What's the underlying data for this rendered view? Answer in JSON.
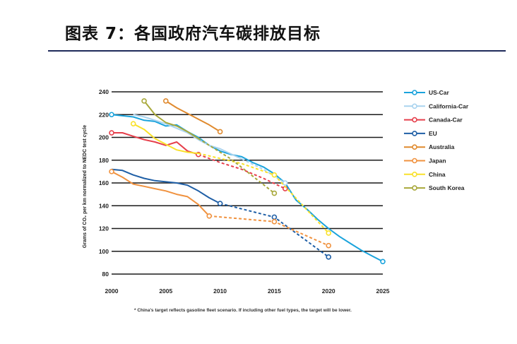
{
  "title": "图表 7：各国政府汽车碳排放目标",
  "chart_data": {
    "type": "line",
    "ylabel": "Grams of CO₂ per km normalized to NEDC test cycle",
    "xlim": [
      2000,
      2025
    ],
    "ylim": [
      80,
      240
    ],
    "x_ticks": [
      2000,
      2005,
      2010,
      2015,
      2020,
      2025
    ],
    "y_ticks": [
      80,
      100,
      120,
      140,
      160,
      180,
      200,
      220,
      240
    ],
    "grid": "horizontal",
    "legend_position": "right",
    "footnote": "* China's target reflects gasoline fleet scenario. If including other fuel types, the target will be lower.",
    "series": [
      {
        "name": "US-Car",
        "color": "#1aa3dc",
        "actual": [
          [
            2000,
            220
          ],
          [
            2002,
            218
          ],
          [
            2003,
            215
          ],
          [
            2004,
            214
          ],
          [
            2005,
            210
          ],
          [
            2006,
            211
          ],
          [
            2007,
            205
          ],
          [
            2008,
            200
          ],
          [
            2009,
            193
          ],
          [
            2010,
            188
          ],
          [
            2011,
            185
          ],
          [
            2012,
            183
          ],
          [
            2013,
            178
          ],
          [
            2014,
            174
          ],
          [
            2015,
            168
          ],
          [
            2016,
            160
          ],
          [
            2017,
            145
          ],
          [
            2018,
            137
          ],
          [
            2019,
            128
          ],
          [
            2020,
            120
          ],
          [
            2021,
            113
          ],
          [
            2022,
            107
          ],
          [
            2023,
            101
          ],
          [
            2024,
            96
          ],
          [
            2025,
            91
          ]
        ],
        "target": [],
        "markers": [
          [
            2000,
            220
          ],
          [
            2025,
            91
          ]
        ]
      },
      {
        "name": "California-Car",
        "color": "#a9d3ef",
        "actual": [
          [
            2002,
            220
          ],
          [
            2003,
            218
          ],
          [
            2004,
            215
          ],
          [
            2005,
            212
          ],
          [
            2006,
            208
          ],
          [
            2007,
            204
          ],
          [
            2008,
            198
          ],
          [
            2009,
            193
          ],
          [
            2010,
            190
          ],
          [
            2012,
            181
          ]
        ],
        "target": [
          [
            2012,
            181
          ],
          [
            2014,
            172
          ],
          [
            2016,
            160
          ]
        ],
        "markers": [
          [
            2016,
            160
          ]
        ]
      },
      {
        "name": "Canada-Car",
        "color": "#e63f4b",
        "actual": [
          [
            2000,
            204
          ],
          [
            2001,
            204
          ],
          [
            2002,
            201
          ],
          [
            2003,
            198
          ],
          [
            2004,
            196
          ],
          [
            2005,
            193
          ],
          [
            2006,
            196
          ],
          [
            2007,
            188
          ],
          [
            2008,
            185
          ]
        ],
        "target": [
          [
            2008,
            185
          ],
          [
            2010,
            178
          ],
          [
            2012,
            172
          ],
          [
            2014,
            164
          ],
          [
            2016,
            155
          ]
        ],
        "markers": [
          [
            2000,
            204
          ],
          [
            2008,
            185
          ],
          [
            2016,
            155
          ]
        ]
      },
      {
        "name": "EU",
        "color": "#1f5fa6",
        "actual": [
          [
            2000,
            172
          ],
          [
            2001,
            171
          ],
          [
            2002,
            167
          ],
          [
            2003,
            164
          ],
          [
            2004,
            162
          ],
          [
            2005,
            161
          ],
          [
            2006,
            160
          ],
          [
            2007,
            158
          ],
          [
            2008,
            153
          ],
          [
            2009,
            147
          ],
          [
            2010,
            142
          ]
        ],
        "target": [
          [
            2010,
            142
          ],
          [
            2015,
            130
          ],
          [
            2020,
            95
          ]
        ],
        "markers": [
          [
            2010,
            142
          ],
          [
            2015,
            130
          ],
          [
            2020,
            95
          ]
        ]
      },
      {
        "name": "Australia",
        "color": "#e08a2e",
        "actual": [
          [
            2005,
            232
          ],
          [
            2006,
            226
          ],
          [
            2007,
            221
          ],
          [
            2008,
            216
          ],
          [
            2009,
            211
          ],
          [
            2010,
            205
          ]
        ],
        "target": [],
        "markers": [
          [
            2005,
            232
          ],
          [
            2010,
            205
          ]
        ]
      },
      {
        "name": "Japan",
        "color": "#f0923f",
        "actual": [
          [
            2000,
            170
          ],
          [
            2001,
            165
          ],
          [
            2002,
            159
          ],
          [
            2003,
            157
          ],
          [
            2004,
            155
          ],
          [
            2005,
            153
          ],
          [
            2006,
            150
          ],
          [
            2007,
            148
          ],
          [
            2008,
            141
          ],
          [
            2009,
            131
          ]
        ],
        "target": [
          [
            2009,
            131
          ],
          [
            2015,
            126
          ],
          [
            2020,
            105
          ]
        ],
        "markers": [
          [
            2000,
            170
          ],
          [
            2009,
            131
          ],
          [
            2015,
            126
          ],
          [
            2020,
            105
          ]
        ]
      },
      {
        "name": "China",
        "color": "#f9e12a",
        "actual": [
          [
            2002,
            212
          ],
          [
            2003,
            207
          ],
          [
            2004,
            199
          ],
          [
            2005,
            194
          ],
          [
            2006,
            189
          ],
          [
            2007,
            187
          ],
          [
            2008,
            186
          ]
        ],
        "target": [
          [
            2008,
            186
          ],
          [
            2012,
            177
          ],
          [
            2015,
            167
          ],
          [
            2020,
            116
          ]
        ],
        "markers": [
          [
            2002,
            212
          ],
          [
            2015,
            167
          ],
          [
            2020,
            116
          ]
        ]
      },
      {
        "name": "South Korea",
        "color": "#a8a83a",
        "actual": [
          [
            2003,
            232
          ],
          [
            2004,
            220
          ],
          [
            2005,
            213
          ],
          [
            2006,
            210
          ],
          [
            2007,
            205
          ],
          [
            2008,
            199
          ]
        ],
        "target": [
          [
            2008,
            199
          ],
          [
            2011,
            181
          ],
          [
            2015,
            151
          ]
        ],
        "markers": [
          [
            2003,
            232
          ],
          [
            2015,
            151
          ]
        ]
      }
    ]
  }
}
